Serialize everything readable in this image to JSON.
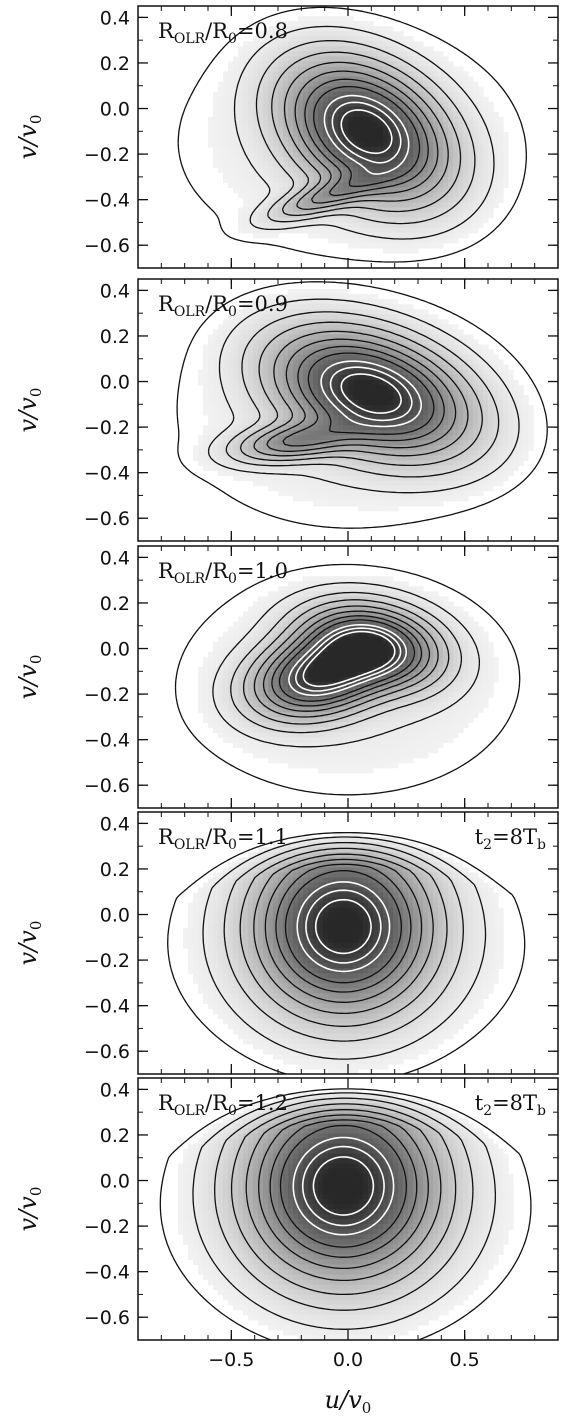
{
  "chart_data": {
    "type": "contour",
    "grid": false,
    "xlabel": "u/v",
    "xlabel_sub": "0",
    "ylabel": "v/v",
    "ylabel_sub": "0",
    "xlim": [
      -0.9,
      0.9
    ],
    "ylim": [
      -0.7,
      0.45
    ],
    "x_ticks": [
      -0.5,
      0.0,
      0.5
    ],
    "x_tick_labels": [
      "−0.5",
      "0.0",
      "0.5"
    ],
    "y_ticks": [
      0.4,
      0.2,
      0.0,
      -0.2,
      -0.4,
      -0.6
    ],
    "y_tick_labels": [
      "0.4",
      "0.2",
      "0.0",
      "−0.2",
      "−0.4",
      "−0.6"
    ],
    "panels": [
      {
        "label_main": "R",
        "label_sub1": "OLR",
        "label_mid": "/R",
        "label_sub2": "0",
        "label_end": "=0.8",
        "ratio": 0.8,
        "time_label": "",
        "blobs": [
          {
            "u": 0.08,
            "v": -0.1,
            "su": 0.22,
            "sv": 0.15,
            "amp": 1.0,
            "rot": -0.6
          },
          {
            "u": -0.08,
            "v": -0.38,
            "su": 0.16,
            "sv": 0.04,
            "amp": 0.32,
            "rot": 0.35
          }
        ]
      },
      {
        "label_main": "R",
        "label_sub1": "OLR",
        "label_mid": "/R",
        "label_sub2": "0",
        "label_end": "=0.9",
        "ratio": 0.9,
        "time_label": "",
        "blobs": [
          {
            "u": 0.1,
            "v": -0.05,
            "su": 0.25,
            "sv": 0.14,
            "amp": 1.0,
            "rot": -0.35
          },
          {
            "u": -0.22,
            "v": -0.26,
            "su": 0.16,
            "sv": 0.05,
            "amp": 0.42,
            "rot": 0.15
          }
        ]
      },
      {
        "label_main": "R",
        "label_sub1": "OLR",
        "label_mid": "/R",
        "label_sub2": "0",
        "label_end": "=1.0",
        "ratio": 1.0,
        "time_label": "",
        "blobs": [
          {
            "u": 0.1,
            "v": 0.01,
            "su": 0.17,
            "sv": 0.1,
            "amp": 0.9,
            "rot": -0.2
          },
          {
            "u": -0.12,
            "v": -0.12,
            "su": 0.17,
            "sv": 0.1,
            "amp": 0.9,
            "rot": 0.25
          }
        ]
      },
      {
        "label_main": "R",
        "label_sub1": "OLR",
        "label_mid": "/R",
        "label_sub2": "0",
        "label_end": "=1.1",
        "ratio": 1.1,
        "time_label": "t",
        "time_sub": "2",
        "time_mid": "=8T",
        "time_sub2": "b",
        "blobs": [
          {
            "u": -0.02,
            "v": -0.05,
            "su": 0.22,
            "sv": 0.22,
            "amp": 1.0,
            "rot": 0.0
          }
        ]
      },
      {
        "label_main": "R",
        "label_sub1": "OLR",
        "label_mid": "/R",
        "label_sub2": "0",
        "label_end": "=1.2",
        "ratio": 1.2,
        "time_label": "t",
        "time_sub": "2",
        "time_mid": "=8T",
        "time_sub2": "b",
        "blobs": [
          {
            "u": -0.02,
            "v": -0.02,
            "su": 0.24,
            "sv": 0.24,
            "amp": 1.0,
            "rot": 0.0
          }
        ]
      }
    ]
  }
}
